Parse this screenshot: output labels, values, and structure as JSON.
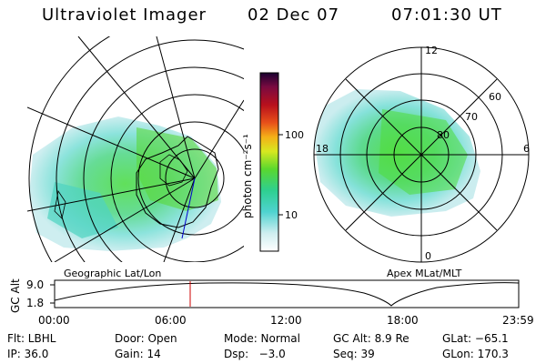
{
  "header": {
    "instrument": "Ultraviolet Imager",
    "date": "02 Dec 07",
    "time": "07:01:30 UT"
  },
  "colorbar": {
    "unit_label": "photon cm⁻²s⁻¹",
    "ticks": [
      "100",
      "10"
    ]
  },
  "geo_panel": {
    "caption": "Geographic Lat/Lon"
  },
  "apex_panel": {
    "caption": "Apex MLat/MLT",
    "mlt_labels": {
      "top": "12",
      "left": "18",
      "right": "6",
      "bottom": "0"
    },
    "lat_labels": [
      "60",
      "70",
      "80"
    ]
  },
  "altitude_plot": {
    "axis_label": "GC Alt",
    "y_ticks": [
      "9.0",
      "1.8"
    ],
    "x_ticks": [
      "00:00",
      "06:00",
      "12:00",
      "18:00",
      "23:59"
    ],
    "current_time_marker": "07:01:30"
  },
  "info": {
    "row1": {
      "filter": "Flt: LBHL",
      "door": "Door: Open",
      "mode": "Mode: Normal",
      "gc_alt": "GC Alt: 8.9 Re",
      "glat": "GLat: −65.1"
    },
    "row2": {
      "ip": "IP: 36.0",
      "gain": "Gain: 14",
      "dsp": "Dsp:   −3.0",
      "seq": "Seq: 39",
      "glon": "GLon: 170.3"
    }
  },
  "colors": {
    "marker": "#cc0000",
    "track": "#000000"
  }
}
